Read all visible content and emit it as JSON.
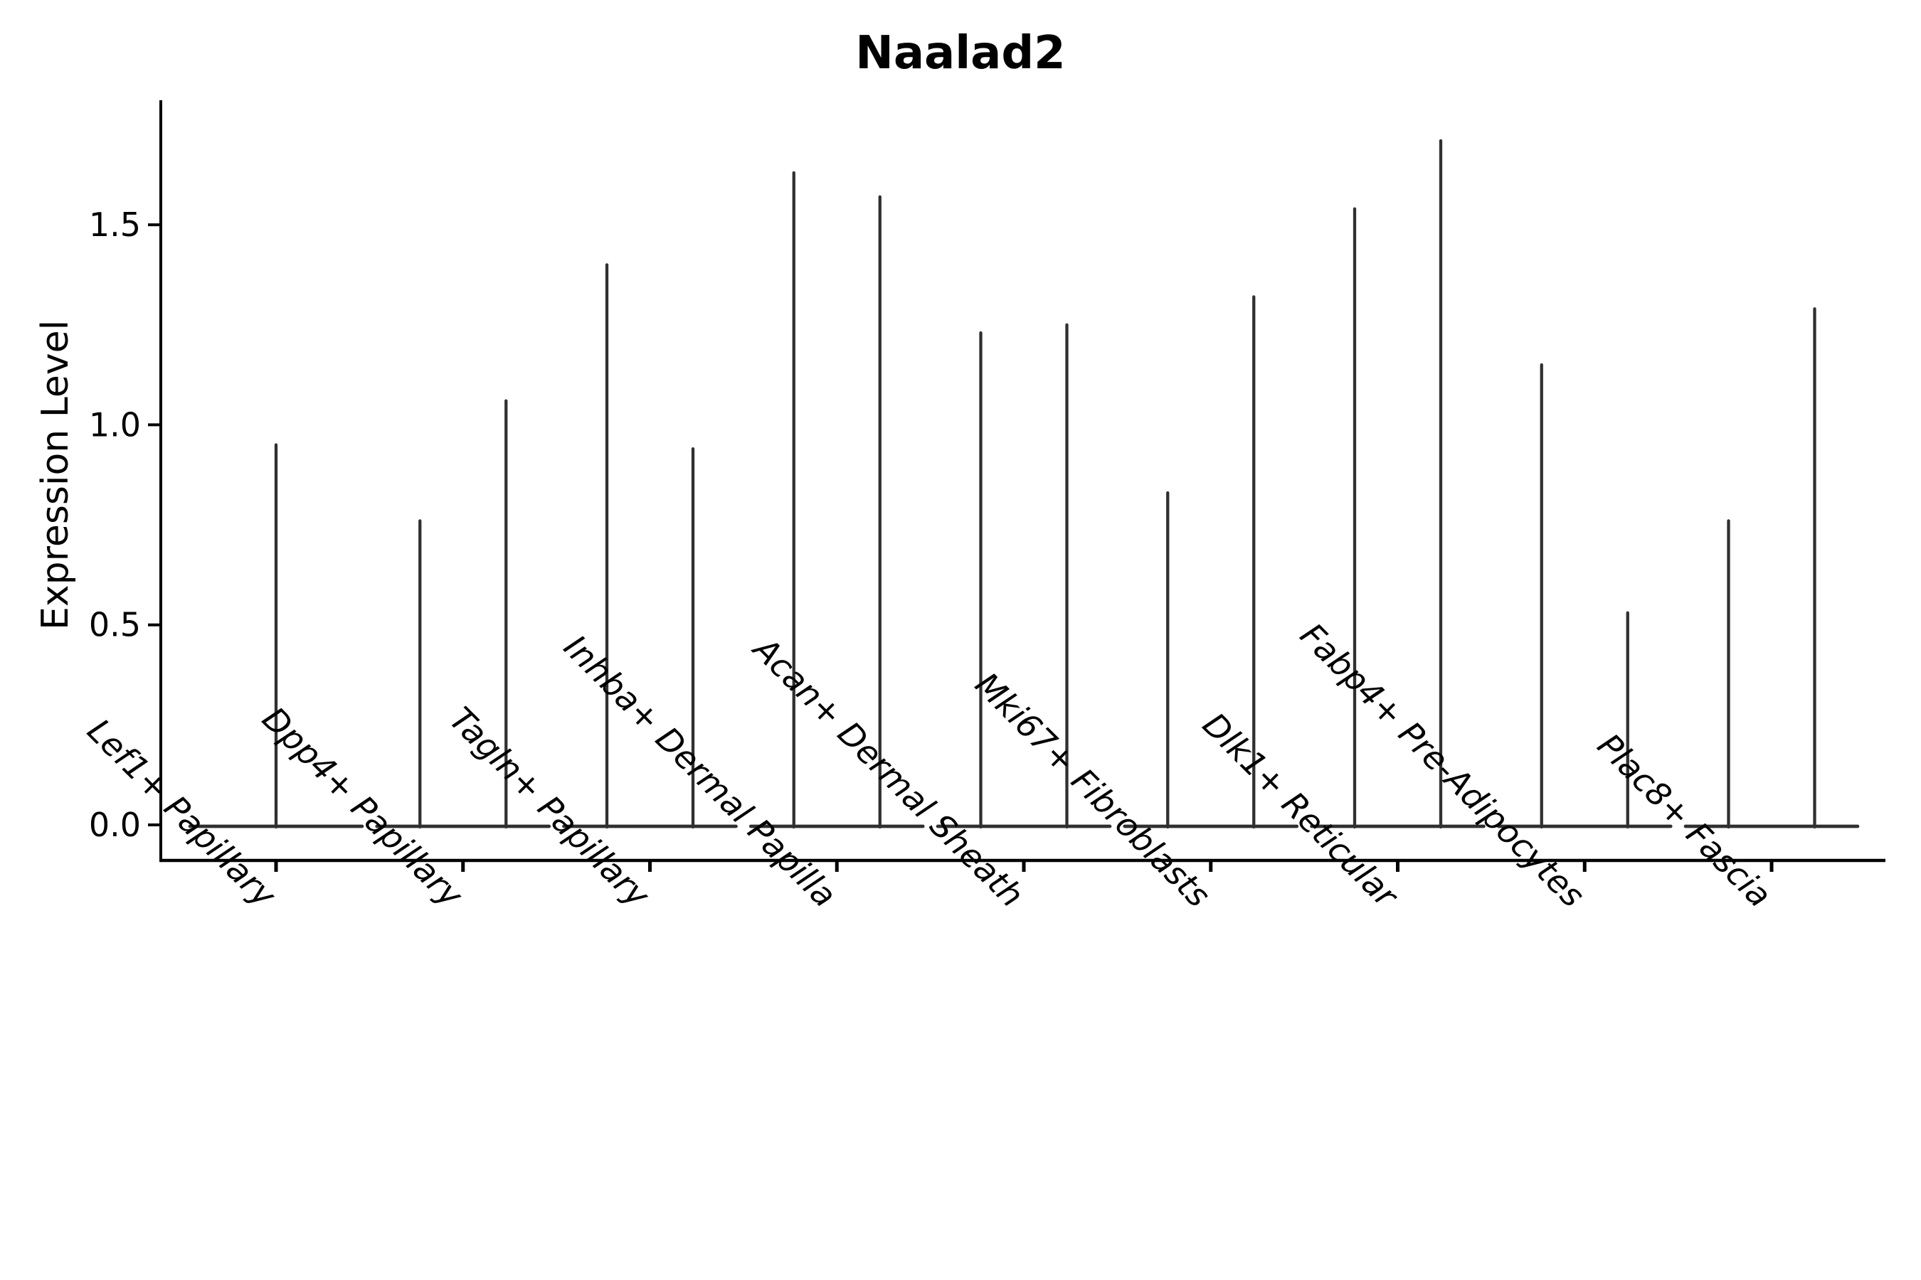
{
  "chart_data": {
    "type": "violin",
    "title": "Naalad2",
    "ylabel": "Expression Level",
    "xlabel": "",
    "yticks": [
      "0.0",
      "0.5",
      "1.0",
      "1.5"
    ],
    "ylim": [
      -0.09,
      1.81
    ],
    "grid": false,
    "legend": "none",
    "x_tick_rotation": 45,
    "colors": {
      "violin": "#303030",
      "axis": "#000000",
      "text": "#000000",
      "background": "#ffffff"
    },
    "categories": [
      {
        "label": "Lef1+ Papillary",
        "values": [
          0.95
        ]
      },
      {
        "label": "Dpp4+ Papillary",
        "values": [
          0.76,
          1.06
        ]
      },
      {
        "label": "Tagln+ Papillary",
        "values": [
          1.4,
          0.94
        ]
      },
      {
        "label": "Inhba+ Dermal Papilla",
        "values": [
          1.63,
          1.57
        ]
      },
      {
        "label": "Acan+ Dermal Sheath",
        "values": [
          1.23,
          1.25
        ]
      },
      {
        "label": "Mki67+ Fibroblasts",
        "values": [
          0.83,
          1.32
        ]
      },
      {
        "label": "Dlk1+ Reticular",
        "values": [
          1.54,
          1.71
        ]
      },
      {
        "label": "Fabp4+ Pre-Adipocytes",
        "values": [
          1.15,
          0.53
        ]
      },
      {
        "label": "Plac8+ Fascia",
        "values": [
          0.76,
          1.29
        ]
      }
    ]
  }
}
